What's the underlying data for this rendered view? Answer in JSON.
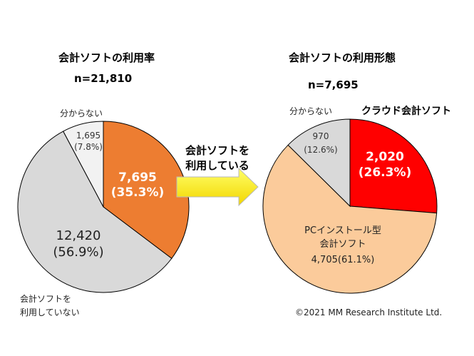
{
  "chart_data": [
    {
      "type": "pie",
      "title": "会計ソフトの利用率",
      "n_label": "n=21,810",
      "slices": [
        {
          "value": 7695,
          "percent": 35.3,
          "value_text": "7,695",
          "percent_text": "(35.3%)",
          "color": "#ED7D31"
        },
        {
          "value": 12420,
          "percent": 56.9,
          "value_text": "12,420",
          "percent_text": "(56.9%)",
          "color": "#D9D9D9",
          "label_line1": "会計ソフトを",
          "label_line2": "利用していない"
        },
        {
          "value": 1695,
          "percent": 7.8,
          "value_text": "1,695",
          "percent_text": "(7.8%)",
          "color": "#F2F2F2",
          "label": "分からない"
        }
      ]
    },
    {
      "type": "pie",
      "title": "会計ソフトの利用形態",
      "n_label": "n=7,695",
      "slices": [
        {
          "value": 2020,
          "percent": 26.3,
          "value_text": "2,020",
          "percent_text": "(26.3%)",
          "color": "#FF0000",
          "label": "クラウド会計ソフト",
          "label_color": "#FF0000"
        },
        {
          "value": 4705,
          "percent": 61.1,
          "value_text": "4,705(61.1%)",
          "color": "#FBCB9B",
          "label_line1": "PCインストール型",
          "label_line2": "会計ソフト"
        },
        {
          "value": 970,
          "percent": 12.6,
          "value_text": "970",
          "percent_text": "(12.6%)",
          "color": "#D9D9D9",
          "label": "分からない"
        }
      ]
    }
  ],
  "arrow": {
    "line1": "会計ソフトを",
    "line2": "利用している",
    "color": "#FFFF00"
  },
  "copyright": "©2021 MM Research Institute Ltd."
}
